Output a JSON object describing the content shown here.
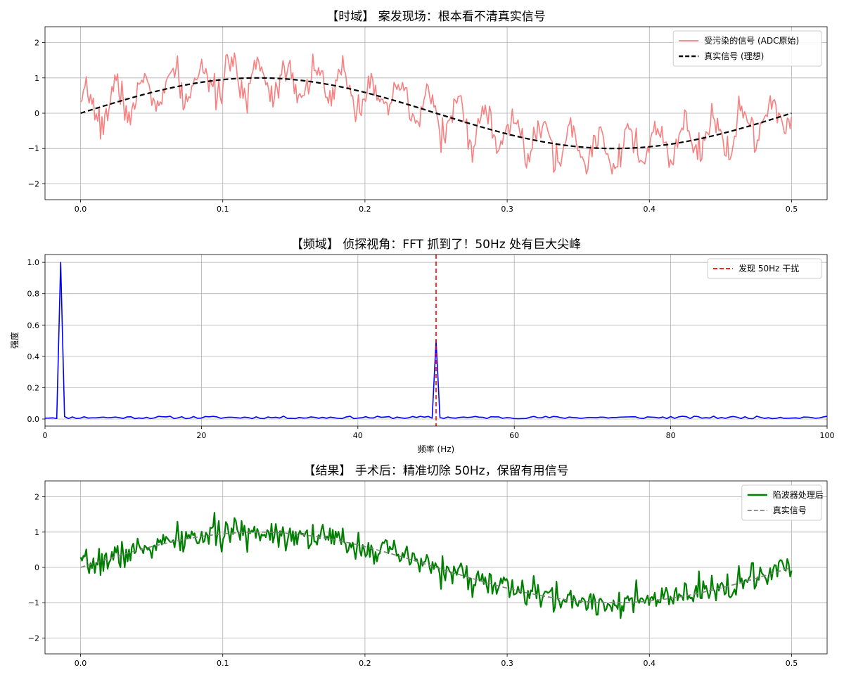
{
  "figure": {
    "background": "#ffffff"
  },
  "chart_data": [
    {
      "type": "line",
      "title": "【时域】 案发现场：根本看不清真实信号",
      "xlabel": "",
      "ylabel": "",
      "xlim": [
        -0.025,
        0.525
      ],
      "ylim": [
        -2.45,
        2.45
      ],
      "xticks": [
        0.0,
        0.1,
        0.2,
        0.3,
        0.4,
        0.5
      ],
      "xtick_labels": [
        "0.0",
        "0.1",
        "0.2",
        "0.3",
        "0.4",
        "0.5"
      ],
      "yticks": [
        2,
        1,
        0,
        -1,
        -2
      ],
      "ytick_labels": [
        "2",
        "1",
        "0",
        "−1",
        "−2"
      ],
      "grid": true,
      "legend_position": "upper-right",
      "series": [
        {
          "name": "受污染的信号 (ADC原始)",
          "color": "#f88080",
          "style": "solid",
          "generated": {
            "kind": "noisy_sine",
            "f": 2,
            "amp": 1,
            "noise": 0.22,
            "hf_freq": 50,
            "hf_amp": 0.5,
            "seed": 7,
            "n": 500,
            "x0": 0.0,
            "x1": 0.5
          }
        },
        {
          "name": "真实信号 (理想)",
          "color": "#000000",
          "style": "dashed",
          "generated": {
            "kind": "sine",
            "f": 2,
            "amp": 1,
            "n": 200,
            "x0": 0.0,
            "x1": 0.5
          }
        }
      ]
    },
    {
      "type": "line",
      "title": "【频域】 侦探视角：FFT 抓到了！50Hz 处有巨大尖峰",
      "xlabel": "频率 (Hz)",
      "ylabel": "强度",
      "xlim": [
        0,
        100
      ],
      "ylim": [
        -0.045,
        1.05
      ],
      "xticks": [
        0,
        20,
        40,
        60,
        80,
        100
      ],
      "xtick_labels": [
        "0",
        "20",
        "40",
        "60",
        "80",
        "100"
      ],
      "yticks": [
        1.0,
        0.8,
        0.6,
        0.4,
        0.2,
        0.0
      ],
      "ytick_labels": [
        "1.0",
        "0.8",
        "0.6",
        "0.4",
        "0.2",
        "0.0"
      ],
      "grid": true,
      "legend_position": "upper-right",
      "series": [
        {
          "name": "",
          "color": "#0000ff",
          "style": "solid",
          "generated": {
            "kind": "spectrum",
            "step": 0.5,
            "floor": 0.01,
            "floor_jitter": 0.008,
            "peaks": [
              [
                2,
                1.0
              ],
              [
                50,
                0.5
              ]
            ],
            "seed": 11
          }
        }
      ],
      "annotations": [
        {
          "type": "vline",
          "x": 50,
          "color": "#ff0000",
          "style": "dashed",
          "label": "发现 50Hz 干扰"
        }
      ]
    },
    {
      "type": "line",
      "title": "【结果】 手术后：精准切除 50Hz，保留有用信号",
      "xlabel": "",
      "ylabel": "",
      "xlim": [
        -0.025,
        0.525
      ],
      "ylim": [
        -2.45,
        2.45
      ],
      "xticks": [
        0.0,
        0.1,
        0.2,
        0.3,
        0.4,
        0.5
      ],
      "xtick_labels": [
        "0.0",
        "0.1",
        "0.2",
        "0.3",
        "0.4",
        "0.5"
      ],
      "yticks": [
        2,
        1,
        0,
        -1,
        -2
      ],
      "ytick_labels": [
        "2",
        "1",
        "0",
        "−1",
        "−2"
      ],
      "grid": true,
      "legend_position": "upper-right",
      "series": [
        {
          "name": "陷波器处理后",
          "color": "#008000",
          "style": "solid",
          "generated": {
            "kind": "noisy_sine",
            "f": 2,
            "amp": 1,
            "noise": 0.2,
            "hf_freq": 0,
            "hf_amp": 0,
            "seed": 7,
            "n": 500,
            "x0": 0.0,
            "x1": 0.5
          }
        },
        {
          "name": "真实信号",
          "color": "#808080",
          "style": "dashed",
          "generated": {
            "kind": "sine",
            "f": 2,
            "amp": 1,
            "n": 200,
            "x0": 0.0,
            "x1": 0.5
          }
        }
      ]
    }
  ]
}
